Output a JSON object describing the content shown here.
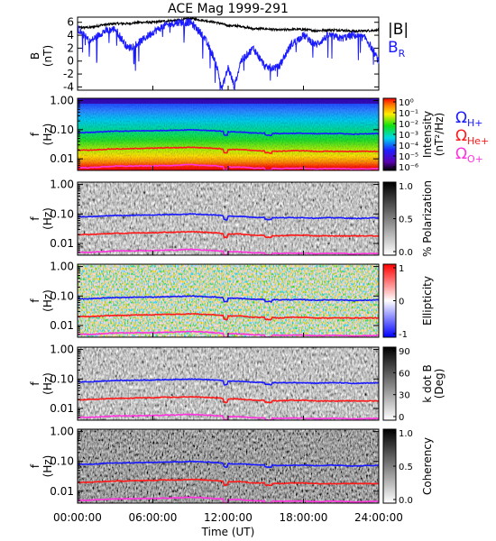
{
  "figure": {
    "title": "ACE Mag 1999-291",
    "colors": {
      "bmag": "#000000",
      "br": "#1a1aff",
      "h": "#1a1aff",
      "he": "#ff1a1a",
      "o": "#ff33dd"
    }
  },
  "chart_data": [
    {
      "type": "line",
      "panel": "magnetic-field",
      "ylabel_main": "B",
      "ylabel_unit": "(nT)",
      "xlim": [
        0,
        24
      ],
      "ylim": [
        -4.5,
        6.8
      ],
      "yticks": [
        6,
        4,
        2,
        0,
        -2,
        -4
      ],
      "ytick_labels": [
        "6",
        "4",
        "2",
        "0",
        "-2",
        "-4"
      ],
      "series": [
        {
          "name": "|B|",
          "x": [
            0,
            1,
            2,
            3,
            4,
            5,
            6,
            7,
            8,
            9,
            10,
            11,
            12,
            13,
            14,
            15,
            16,
            17,
            18,
            19,
            20,
            21,
            22,
            23,
            24
          ],
          "values": [
            5.2,
            5.2,
            5.6,
            5.8,
            5.8,
            6.0,
            6.0,
            6.2,
            6.3,
            6.6,
            6.3,
            6.0,
            5.5,
            5.4,
            5.0,
            5.0,
            4.8,
            4.9,
            4.9,
            4.7,
            4.8,
            4.8,
            4.6,
            4.7,
            4.8
          ]
        },
        {
          "name": "B_R",
          "x": [
            0,
            1,
            2,
            3,
            4,
            5,
            6,
            7,
            8,
            9,
            10,
            11,
            11.5,
            12,
            12.5,
            13,
            14,
            15,
            16,
            17,
            18,
            19,
            20,
            21,
            22,
            23,
            24
          ],
          "values": [
            5.0,
            3.0,
            4.5,
            5.0,
            2.0,
            3.0,
            4.5,
            5.5,
            6.0,
            6.0,
            4.0,
            0.0,
            -4.3,
            -1.0,
            -4.0,
            0.0,
            2.0,
            -1.0,
            -1.0,
            2.5,
            4.0,
            2.5,
            4.0,
            3.5,
            4.0,
            3.5,
            0.0
          ]
        }
      ]
    },
    {
      "type": "heatmap",
      "panel": "intensity",
      "ylabel_main": "f",
      "ylabel_unit": "(Hz)",
      "xlim": [
        0,
        24
      ],
      "ylim": [
        0.004,
        1.2
      ],
      "yscale": "log",
      "yticks": [
        1.0,
        0.1,
        0.01
      ],
      "ytick_labels": [
        "1.00",
        "0.10",
        "0.01"
      ],
      "colorbar": {
        "title": "Intensity",
        "units": "(nT²/Hz)",
        "ticks": [
          "10⁰",
          "10⁻¹",
          "10⁻²",
          "10⁻³",
          "10⁻⁴",
          "10⁻⁵",
          "10⁻⁶"
        ]
      },
      "legend": [
        "ΩH+",
        "ΩHe+",
        "ΩO+"
      ]
    },
    {
      "type": "heatmap",
      "panel": "polarization",
      "ylabel_main": "f",
      "ylabel_unit": "(Hz)",
      "yscale": "log",
      "yticks": [
        1.0,
        0.1,
        0.01
      ],
      "ytick_labels": [
        "1.00",
        "0.10",
        "0.01"
      ],
      "colorbar": {
        "title": "% Polarization",
        "ticks": [
          "1.0",
          "0.5",
          "0.0"
        ]
      }
    },
    {
      "type": "heatmap",
      "panel": "ellipticity",
      "ylabel_main": "f",
      "ylabel_unit": "(Hz)",
      "yscale": "log",
      "yticks": [
        1.0,
        0.1,
        0.01
      ],
      "ytick_labels": [
        "1.00",
        "0.10",
        "0.01"
      ],
      "colorbar": {
        "title": "Ellipticity",
        "ticks": [
          "1",
          "0",
          "-1"
        ]
      }
    },
    {
      "type": "heatmap",
      "panel": "kdotb",
      "ylabel_main": "f",
      "ylabel_unit": "(Hz)",
      "yscale": "log",
      "yticks": [
        1.0,
        0.1,
        0.01
      ],
      "ytick_labels": [
        "1.00",
        "0.10",
        "0.01"
      ],
      "colorbar": {
        "title": "k dot B",
        "units": "(Deg)",
        "ticks": [
          "90",
          "60",
          "30",
          "0"
        ]
      }
    },
    {
      "type": "heatmap",
      "panel": "coherency",
      "ylabel_main": "f",
      "ylabel_unit": "(Hz)",
      "yscale": "log",
      "yticks": [
        1.0,
        0.1,
        0.01
      ],
      "ytick_labels": [
        "1.00",
        "0.10",
        "0.01"
      ],
      "colorbar": {
        "title": "Coherency",
        "ticks": [
          "1.0",
          "0.5",
          "0.0"
        ]
      }
    }
  ],
  "gyrofrequencies": {
    "x": [
      0,
      1,
      2,
      3,
      4,
      5,
      6,
      7,
      8,
      9,
      10,
      11,
      12,
      13,
      14,
      15,
      16,
      17,
      18,
      19,
      20,
      21,
      22,
      23,
      24
    ],
    "H": [
      0.08,
      0.08,
      0.085,
      0.089,
      0.089,
      0.092,
      0.092,
      0.095,
      0.096,
      0.1,
      0.096,
      0.092,
      0.084,
      0.083,
      0.077,
      0.077,
      0.074,
      0.075,
      0.075,
      0.072,
      0.074,
      0.074,
      0.07,
      0.072,
      0.074
    ],
    "He": [
      0.02,
      0.02,
      0.021,
      0.022,
      0.022,
      0.023,
      0.023,
      0.024,
      0.024,
      0.025,
      0.024,
      0.023,
      0.021,
      0.021,
      0.019,
      0.019,
      0.018,
      0.019,
      0.019,
      0.018,
      0.018,
      0.018,
      0.018,
      0.018,
      0.018
    ],
    "O": [
      0.005,
      0.005,
      0.0053,
      0.0056,
      0.0056,
      0.0057,
      0.0057,
      0.0059,
      0.006,
      0.0063,
      0.006,
      0.0057,
      0.0053,
      0.0052,
      0.0048,
      0.0048,
      0.0046,
      0.0047,
      0.0047,
      0.0045,
      0.0046,
      0.0046,
      0.0044,
      0.0045,
      0.0046
    ]
  },
  "xaxis": {
    "label": "Time (UT)",
    "ticks": [
      0,
      6,
      12,
      18,
      24
    ],
    "tick_labels": [
      "00:00:00",
      "06:00:00",
      "12:00:00",
      "18:00:00",
      "24:00:00"
    ]
  }
}
